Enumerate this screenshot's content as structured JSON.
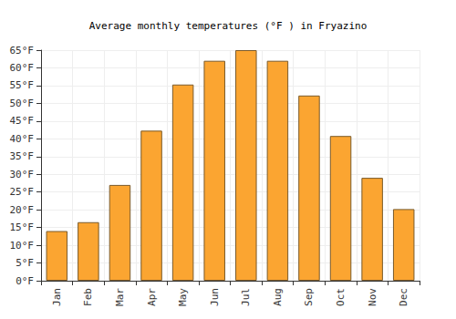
{
  "chart_data": {
    "type": "bar",
    "title": "Average monthly temperatures (°F ) in Fryazino",
    "categories": [
      "Jan",
      "Feb",
      "Mar",
      "Apr",
      "May",
      "Jun",
      "Jul",
      "Aug",
      "Sep",
      "Oct",
      "Nov",
      "Dec"
    ],
    "values": [
      14,
      16.5,
      27,
      42.3,
      55.3,
      62,
      65,
      62,
      52.2,
      40.8,
      29,
      20.2
    ],
    "color": "#fba531",
    "ylim": [
      0,
      65
    ],
    "yticks": [
      {
        "value": 0,
        "label": "0°F"
      },
      {
        "value": 5,
        "label": "5°F"
      },
      {
        "value": 10,
        "label": "10°F"
      },
      {
        "value": 15,
        "label": "15°F"
      },
      {
        "value": 20,
        "label": "20°F"
      },
      {
        "value": 25,
        "label": "25°F"
      },
      {
        "value": 30,
        "label": "30°F"
      },
      {
        "value": 35,
        "label": "35°F"
      },
      {
        "value": 40,
        "label": "40°F"
      },
      {
        "value": 45,
        "label": "45°F"
      },
      {
        "value": 50,
        "label": "50°F"
      },
      {
        "value": 55,
        "label": "55°F"
      },
      {
        "value": 60,
        "label": "60°F"
      },
      {
        "value": 65,
        "label": "65°F"
      }
    ],
    "grid": true
  }
}
